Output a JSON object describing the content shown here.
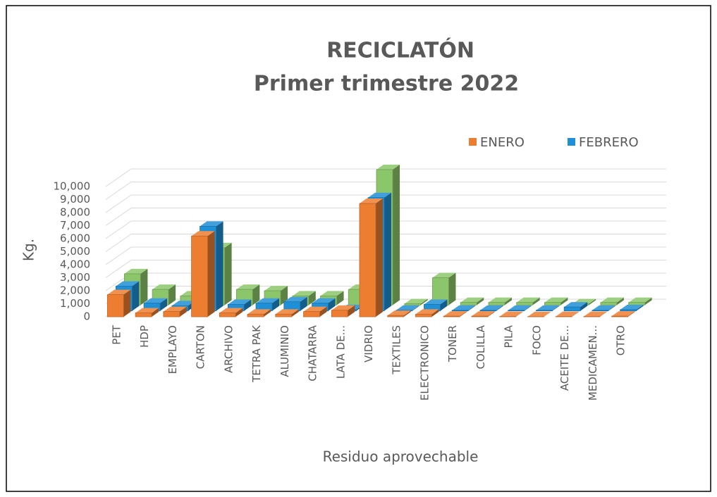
{
  "chart_data": {
    "type": "bar3d",
    "title": "RECICLATÓN",
    "subtitle": "Primer trimestre 2022",
    "y_label": "Kg.",
    "x_label": "Residuo aprovechable",
    "categories": [
      "PET",
      "HDP",
      "EMPLAYO",
      "CARTON",
      "ARCHIVO",
      "TETRA PAK",
      "ALUMINIO",
      "CHATARRA",
      "LATA DE...",
      "VIDRIO",
      "TEXTILES",
      "ELECTRONICO",
      "TONER",
      "COLILLA",
      "PILA",
      "FOCO",
      "ACEITE DE...",
      "MEDICAMEN...",
      "OTRO"
    ],
    "series": [
      {
        "name": "ENERO",
        "color": "#ed7d31",
        "values": [
          1700,
          300,
          400,
          6200,
          300,
          200,
          200,
          400,
          500,
          8700,
          100,
          200,
          50,
          50,
          20,
          10,
          20,
          20,
          50
        ]
      },
      {
        "name": "FEBRERO",
        "color": "#1f8fd6",
        "values": [
          1900,
          600,
          400,
          6500,
          500,
          600,
          700,
          600,
          100,
          8700,
          50,
          500,
          50,
          50,
          50,
          50,
          300,
          50,
          100
        ]
      },
      {
        "color": "#8cc66a",
        "values": [
          2400,
          1200,
          700,
          4400,
          1200,
          1100,
          700,
          700,
          1200,
          10400,
          100,
          2100,
          200,
          200,
          200,
          200,
          100,
          200,
          200
        ]
      }
    ],
    "ylim": [
      0,
      10000
    ],
    "yticks": [
      0,
      {
        "value": 1000,
        "label": "1,000"
      },
      {
        "value": 2000,
        "label": "2,000"
      },
      {
        "value": 3000,
        "label": "3,000"
      },
      {
        "value": 4000,
        "label": "4,000"
      },
      {
        "value": 5000,
        "label": "5,000"
      },
      {
        "value": 6000,
        "label": "6,000"
      },
      {
        "value": 7000,
        "label": "7,000"
      },
      {
        "value": 8000,
        "label": "8,000"
      },
      {
        "value": 9000,
        "label": "9,000"
      },
      {
        "value": 10000,
        "label": "10,000"
      }
    ],
    "grid": true,
    "legend": "top-right"
  }
}
